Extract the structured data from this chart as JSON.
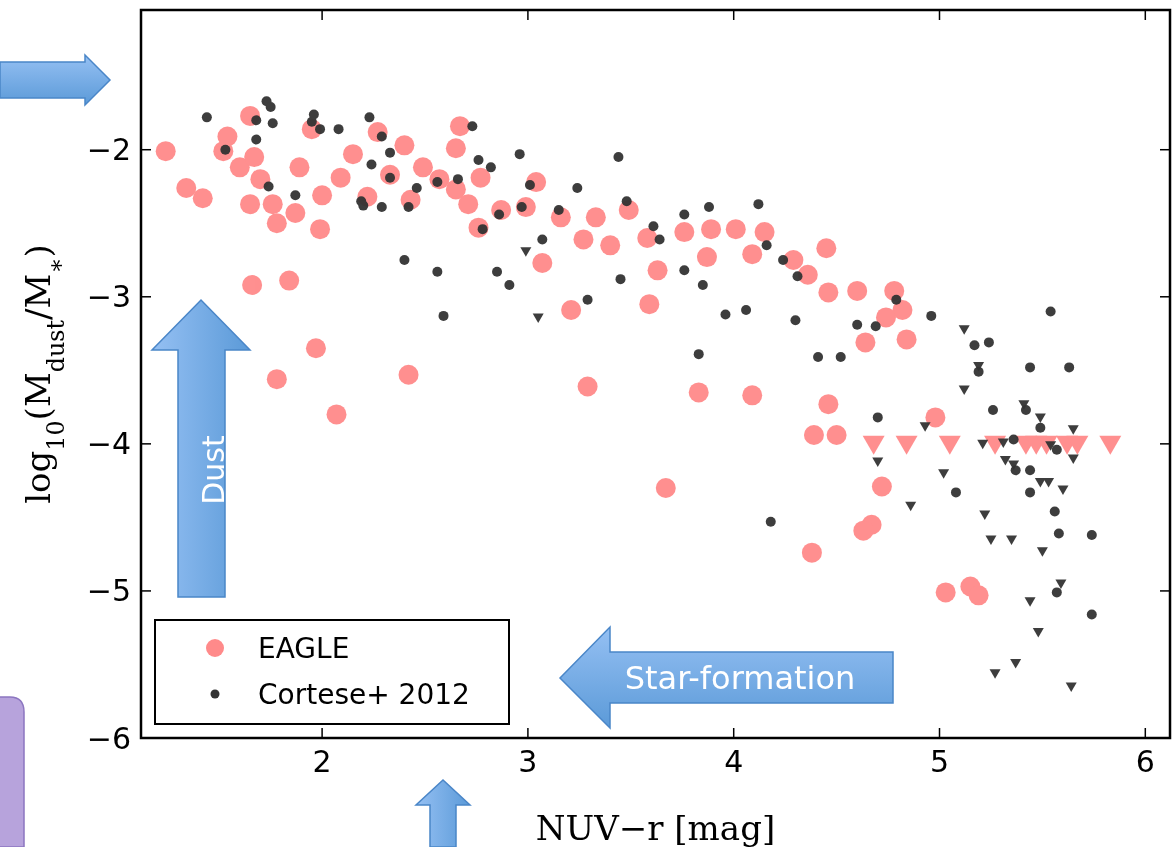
{
  "chart_data": {
    "type": "scatter",
    "xlabel": "NUV−r [mag]",
    "ylabel": "log$_{10}$(M$_{dust}$/M$_{∗}$)",
    "xlim": [
      1.12,
      6.12
    ],
    "ylim": [
      -6,
      -1.05
    ],
    "xticks": [
      2,
      3,
      4,
      5,
      6
    ],
    "yticks": [
      {
        "value": -2,
        "label": "−2"
      },
      {
        "value": -3,
        "label": "−3"
      },
      {
        "value": -4,
        "label": "−4"
      },
      {
        "value": -5,
        "label": "−5"
      },
      {
        "value": -6,
        "label": "−6"
      }
    ],
    "grid": false,
    "legend": "bottom left",
    "annotations": [
      "Dust",
      "Star-formation"
    ],
    "series": [
      {
        "name": "EAGLE",
        "color": "#ff8a8a",
        "marker": "circle",
        "x": [
          1.24,
          1.34,
          1.42,
          1.52,
          1.54,
          1.65,
          1.6,
          1.67,
          1.7,
          1.65,
          1.76,
          1.78,
          1.87,
          1.89,
          1.95,
          2.0,
          1.99,
          2.09,
          2.15,
          2.22,
          2.27,
          2.33,
          2.4,
          2.43,
          2.49,
          2.57,
          2.65,
          2.67,
          2.65,
          2.71,
          2.77,
          2.76,
          2.87,
          2.99,
          3.04,
          3.07,
          3.16,
          3.21,
          3.27,
          3.33,
          3.4,
          3.49,
          3.58,
          3.59,
          3.63,
          3.76,
          3.89,
          3.87,
          4.09,
          4.01,
          4.15,
          4.29,
          4.36,
          4.45,
          4.46,
          4.6,
          4.64,
          4.78,
          4.82,
          4.74,
          4.84,
          4.46,
          4.5,
          4.39,
          3.83,
          4.09,
          3.29,
          4.38,
          4.72,
          4.67,
          4.63,
          4.98,
          5.03,
          5.15,
          5.19,
          3.67,
          1.66,
          1.84,
          1.97,
          1.78,
          2.07,
          2.42
        ],
        "values": [
          -2.01,
          -2.26,
          -2.33,
          -2.01,
          -1.91,
          -1.77,
          -2.12,
          -2.05,
          -2.2,
          -2.37,
          -2.37,
          -2.5,
          -2.43,
          -2.12,
          -1.86,
          -2.31,
          -2.54,
          -2.19,
          -2.03,
          -2.32,
          -1.88,
          -2.17,
          -1.97,
          -2.34,
          -2.12,
          -2.2,
          -2.27,
          -1.84,
          -1.99,
          -2.37,
          -2.19,
          -2.53,
          -2.41,
          -2.39,
          -2.22,
          -2.77,
          -2.46,
          -3.09,
          -2.61,
          -2.46,
          -2.65,
          -2.41,
          -2.6,
          -3.05,
          -2.82,
          -2.56,
          -2.54,
          -2.73,
          -2.71,
          -2.54,
          -2.56,
          -2.75,
          -2.85,
          -2.67,
          -2.97,
          -2.96,
          -3.31,
          -2.96,
          -3.09,
          -3.14,
          -3.29,
          -3.73,
          -3.94,
          -3.94,
          -3.65,
          -3.67,
          -3.61,
          -4.74,
          -4.29,
          -4.55,
          -4.59,
          -3.82,
          -5.01,
          -4.97,
          -5.03,
          -4.3,
          -2.92,
          -2.89,
          -3.35,
          -3.56,
          -3.8,
          -3.53
        ]
      },
      {
        "color": "#ff8a8a",
        "marker": "triangle",
        "x": [
          4.68,
          4.84,
          5.05,
          5.27,
          5.42,
          5.47,
          5.52,
          5.62,
          5.67,
          5.83
        ],
        "values": [
          -4,
          -4,
          -4,
          -4,
          -4,
          -4,
          -4,
          -4,
          -4,
          -4
        ]
      },
      {
        "name": "Cortese+ 2012",
        "color": "#333333",
        "marker": "circle",
        "x": [
          1.44,
          1.73,
          1.75,
          1.68,
          1.76,
          1.53,
          1.68,
          1.95,
          1.96,
          1.99,
          2.08,
          2.23,
          2.29,
          2.33,
          2.24,
          2.33,
          2.19,
          2.29,
          2.2,
          2.42,
          2.46,
          2.56,
          2.66,
          2.73,
          2.76,
          2.82,
          2.78,
          2.86,
          2.96,
          2.97,
          3.01,
          3.07,
          3.15,
          3.24,
          3.44,
          3.48,
          3.61,
          3.64,
          3.76,
          3.76,
          3.88,
          4.12,
          4.16,
          4.24,
          4.31,
          3.96,
          3.83,
          3.85,
          4.06,
          4.41,
          4.52,
          4.6,
          4.69,
          4.79,
          4.96,
          5.17,
          5.24,
          5.19,
          5.54,
          5.44,
          5.63,
          5.26,
          5.42,
          5.49,
          5.37,
          5.44,
          5.08,
          5.44,
          5.56,
          5.58,
          5.74,
          5.57,
          5.74,
          4.18,
          4.7,
          5.36,
          5.57,
          4.3,
          3.45,
          3.29,
          2.56,
          2.85,
          2.59,
          2.4,
          2.91,
          1.74,
          1.87
        ],
        "values": [
          -1.78,
          -1.67,
          -1.71,
          -1.8,
          -1.82,
          -2.0,
          -1.93,
          -1.81,
          -1.76,
          -1.86,
          -1.86,
          -1.78,
          -1.91,
          -2.02,
          -2.1,
          -2.19,
          -2.35,
          -2.39,
          -2.38,
          -2.39,
          -2.26,
          -2.22,
          -2.2,
          -1.84,
          -2.07,
          -2.12,
          -2.54,
          -2.44,
          -2.03,
          -2.39,
          -2.24,
          -2.61,
          -2.41,
          -2.26,
          -2.05,
          -2.35,
          -2.52,
          -2.61,
          -2.44,
          -2.82,
          -2.39,
          -2.37,
          -2.65,
          -2.75,
          -2.86,
          -3.12,
          -3.39,
          -2.92,
          -3.09,
          -3.41,
          -3.41,
          -3.19,
          -3.2,
          -3.02,
          -3.13,
          -3.33,
          -3.31,
          -3.51,
          -3.1,
          -3.48,
          -3.48,
          -3.77,
          -3.77,
          -3.89,
          -4.18,
          -4.18,
          -4.33,
          -4.33,
          -4.46,
          -4.61,
          -4.62,
          -5.01,
          -5.16,
          -4.53,
          -3.82,
          -3.97,
          -4.04,
          -3.16,
          -2.88,
          -3.02,
          -2.83,
          -2.83,
          -3.13,
          -2.75,
          -2.92,
          -2.25,
          -2.31
        ]
      },
      {
        "color": "#333333",
        "marker": "triangle",
        "x": [
          2.99,
          3.05,
          5.12,
          5.19,
          5.12,
          4.93,
          5.41,
          5.49,
          5.65,
          5.21,
          5.31,
          5.54,
          4.7,
          5.32,
          5.36,
          5.65,
          5.02,
          5.49,
          5.53,
          5.6,
          4.86,
          5.22,
          5.25,
          5.35,
          5.5,
          5.59,
          5.44,
          5.48,
          5.37,
          5.27,
          5.64
        ],
        "values": [
          -2.69,
          -3.14,
          -3.22,
          -3.47,
          -3.63,
          -3.88,
          -3.73,
          -3.82,
          -3.9,
          -4.0,
          -3.99,
          -4.01,
          -4.12,
          -4.11,
          -4.14,
          -4.1,
          -4.2,
          -4.26,
          -4.26,
          -4.31,
          -4.42,
          -4.48,
          -4.65,
          -4.65,
          -4.73,
          -4.95,
          -5.07,
          -5.28,
          -5.49,
          -5.56,
          -5.65
        ]
      }
    ]
  }
}
